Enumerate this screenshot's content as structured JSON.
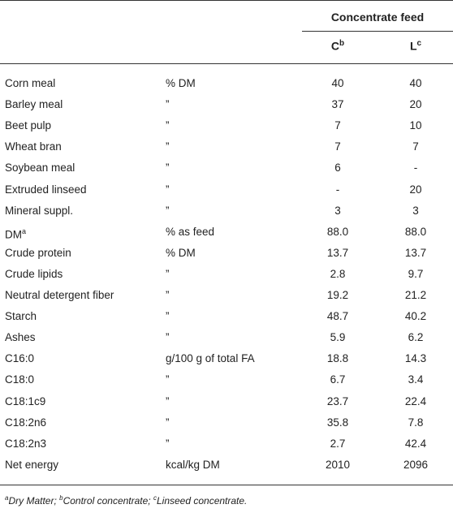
{
  "header": {
    "group_title": "Concentrate feed",
    "col_c": "C",
    "col_c_sup": "b",
    "col_l": "L",
    "col_l_sup": "c"
  },
  "rows": [
    {
      "name": "Corn meal",
      "sup": "",
      "unit": "% DM",
      "c": "40",
      "l": "40"
    },
    {
      "name": "Barley meal",
      "sup": "",
      "unit": "”",
      "c": "37",
      "l": "20"
    },
    {
      "name": "Beet pulp",
      "sup": "",
      "unit": "”",
      "c": "7",
      "l": "10"
    },
    {
      "name": "Wheat bran",
      "sup": "",
      "unit": "”",
      "c": "7",
      "l": "7"
    },
    {
      "name": "Soybean meal",
      "sup": "",
      "unit": "”",
      "c": "6",
      "l": "-"
    },
    {
      "name": "Extruded linseed",
      "sup": "",
      "unit": "”",
      "c": "-",
      "l": "20"
    },
    {
      "name": "Mineral suppl.",
      "sup": "",
      "unit": "”",
      "c": "3",
      "l": "3"
    },
    {
      "name": "DM",
      "sup": "a",
      "unit": "% as feed",
      "c": "88.0",
      "l": "88.0"
    },
    {
      "name": "Crude protein",
      "sup": "",
      "unit": "% DM",
      "c": "13.7",
      "l": "13.7"
    },
    {
      "name": "Crude lipids",
      "sup": "",
      "unit": "”",
      "c": "2.8",
      "l": "9.7"
    },
    {
      "name": "Neutral detergent fiber",
      "sup": "",
      "unit": "”",
      "c": "19.2",
      "l": "21.2"
    },
    {
      "name": "Starch",
      "sup": "",
      "unit": "”",
      "c": "48.7",
      "l": "40.2"
    },
    {
      "name": "Ashes",
      "sup": "",
      "unit": "”",
      "c": "5.9",
      "l": "6.2"
    },
    {
      "name": "C16:0",
      "sup": "",
      "unit": "g/100 g of total FA",
      "c": "18.8",
      "l": "14.3"
    },
    {
      "name": "C18:0",
      "sup": "",
      "unit": "”",
      "c": "6.7",
      "l": "3.4"
    },
    {
      "name": "C18:1c9",
      "sup": "",
      "unit": "”",
      "c": "23.7",
      "l": "22.4"
    },
    {
      "name": "C18:2n6",
      "sup": "",
      "unit": "”",
      "c": "35.8",
      "l": "7.8"
    },
    {
      "name": "C18:2n3",
      "sup": "",
      "unit": "”",
      "c": "2.7",
      "l": "42.4"
    },
    {
      "name": "Net energy",
      "sup": "",
      "unit": "kcal/kg DM",
      "c": "2010",
      "l": "2096"
    }
  ],
  "footnote": {
    "a_mark": "a",
    "a_text": "Dry Matter; ",
    "b_mark": "b",
    "b_text": "Control concentrate; ",
    "c_mark": "c",
    "c_text": "Linseed concentrate."
  }
}
